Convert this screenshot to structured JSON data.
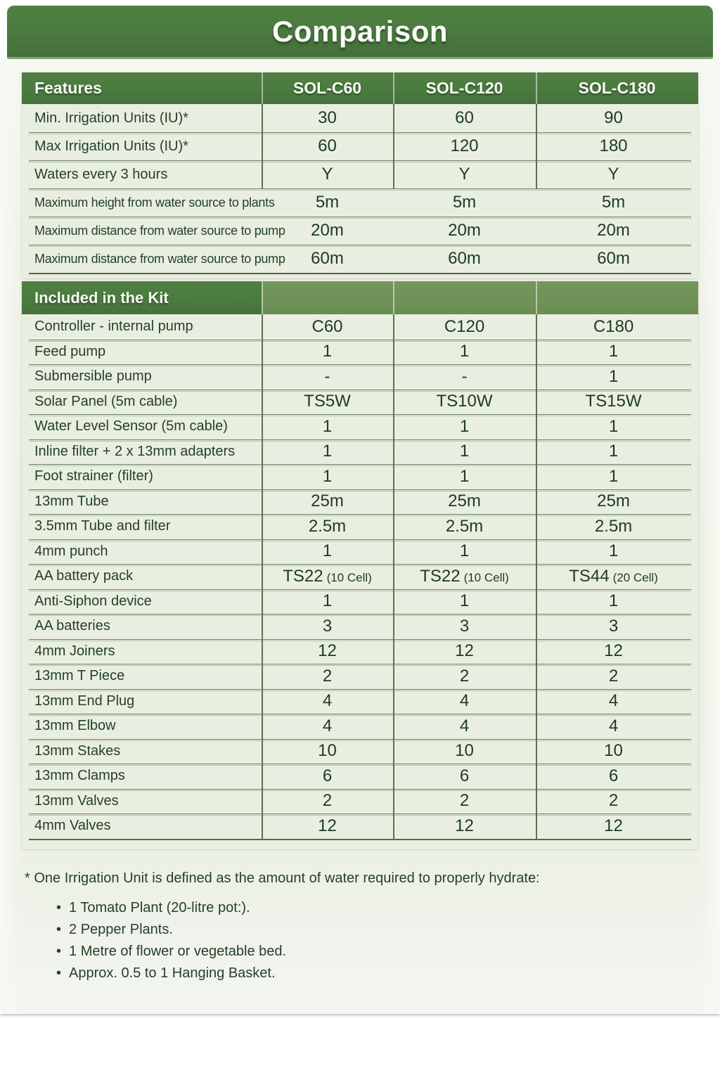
{
  "title": "Comparison",
  "colors": {
    "banner_green": "#4a7a40",
    "kit_band_light_green": "#6f9257",
    "table_bg": "#e9efe0",
    "text_green": "#1f3a26",
    "divider_dark": "#5e7053",
    "divider_soft": "#8a9b7e"
  },
  "features_table": {
    "columns": [
      "Features",
      "SOL-C60",
      "SOL-C120",
      "SOL-C180"
    ],
    "rows": [
      {
        "label": "Min. Irrigation Units (IU)*",
        "values": [
          "30",
          "60",
          "90"
        ],
        "divided": true
      },
      {
        "label": "Max Irrigation Units (IU)*",
        "values": [
          "60",
          "120",
          "180"
        ],
        "divided": true
      },
      {
        "label": "Waters every 3 hours",
        "values": [
          "Y",
          "Y",
          "Y"
        ],
        "divided": true
      },
      {
        "label": "Maximum height from water source to plants",
        "values": [
          "5m",
          "5m",
          "5m"
        ],
        "divided": false
      },
      {
        "label": "Maximum distance from water source to pump",
        "values": [
          "20m",
          "20m",
          "20m"
        ],
        "divided": false
      },
      {
        "label": "Maximum distance from water source to pump",
        "values": [
          "60m",
          "60m",
          "60m"
        ],
        "divided": false
      }
    ]
  },
  "kit_table": {
    "header": "Included in the Kit",
    "rows": [
      {
        "label": "Controller - internal pump",
        "values": [
          "C60",
          "C120",
          "C180"
        ]
      },
      {
        "label": "Feed pump",
        "values": [
          "1",
          "1",
          "1"
        ]
      },
      {
        "label": "Submersible pump",
        "values": [
          "-",
          "-",
          "1"
        ]
      },
      {
        "label": "Solar Panel (5m cable)",
        "values": [
          "TS5W",
          "TS10W",
          "TS15W"
        ]
      },
      {
        "label": "Water Level Sensor (5m cable)",
        "values": [
          "1",
          "1",
          "1"
        ]
      },
      {
        "label": "Inline filter + 2 x 13mm adapters",
        "values": [
          "1",
          "1",
          "1"
        ]
      },
      {
        "label": "Foot strainer (filter)",
        "values": [
          "1",
          "1",
          "1"
        ]
      },
      {
        "label": "13mm Tube",
        "values": [
          "25m",
          "25m",
          "25m"
        ]
      },
      {
        "label": "3.5mm Tube and filter",
        "values": [
          "2.5m",
          "2.5m",
          "2.5m"
        ]
      },
      {
        "label": "4mm punch",
        "values": [
          "1",
          "1",
          "1"
        ]
      },
      {
        "label": "AA battery pack",
        "values": [
          {
            "main": "TS22",
            "sub": "(10 Cell)"
          },
          {
            "main": "TS22",
            "sub": "(10 Cell)"
          },
          {
            "main": "TS44",
            "sub": "(20 Cell)"
          }
        ]
      },
      {
        "label": "Anti-Siphon device",
        "values": [
          "1",
          "1",
          "1"
        ]
      },
      {
        "label": "AA batteries",
        "values": [
          "3",
          "3",
          "3"
        ]
      },
      {
        "label": "4mm Joiners",
        "values": [
          "12",
          "12",
          "12"
        ]
      },
      {
        "label": "13mm T Piece",
        "values": [
          "2",
          "2",
          "2"
        ]
      },
      {
        "label": "13mm End Plug",
        "values": [
          "4",
          "4",
          "4"
        ]
      },
      {
        "label": "13mm Elbow",
        "values": [
          "4",
          "4",
          "4"
        ]
      },
      {
        "label": "13mm Stakes",
        "values": [
          "10",
          "10",
          "10"
        ]
      },
      {
        "label": "13mm Clamps",
        "values": [
          "6",
          "6",
          "6"
        ]
      },
      {
        "label": "13mm Valves",
        "values": [
          "2",
          "2",
          "2"
        ]
      },
      {
        "label": "4mm Valves",
        "values": [
          "12",
          "12",
          "12"
        ]
      }
    ]
  },
  "footnote": {
    "intro": "* One Irrigation Unit is defined as the amount of water required to properly hydrate:",
    "bullet_glyph": "•",
    "bullets": [
      "1 Tomato Plant (20-litre pot:).",
      "2 Pepper Plants.",
      "1 Metre of flower or vegetable bed.",
      "Approx. 0.5 to 1 Hanging Basket."
    ]
  }
}
